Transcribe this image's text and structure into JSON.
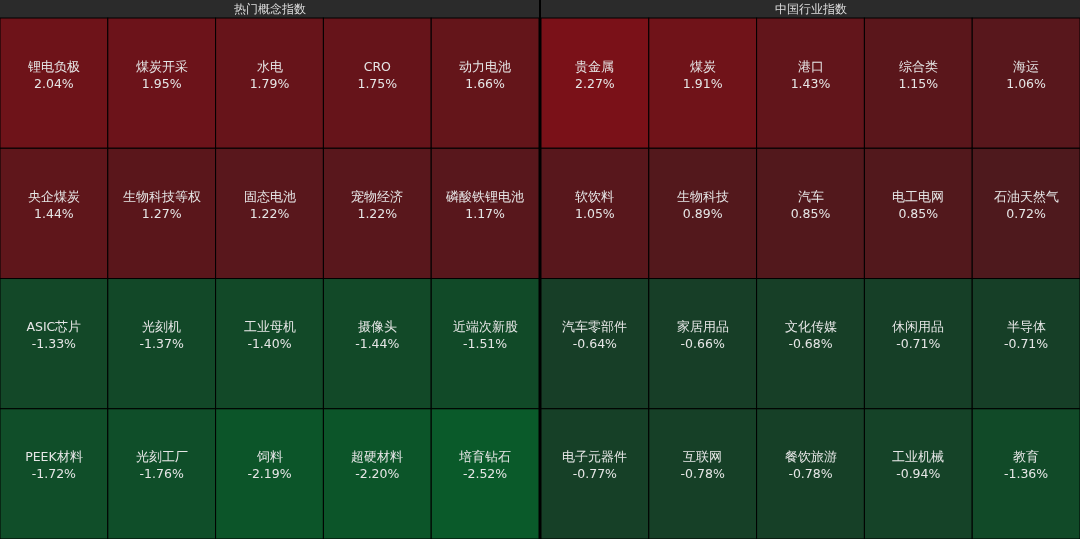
{
  "chart_data": [
    {
      "type": "other",
      "title": "热门概念指数",
      "categories": [
        "锂电负极",
        "煤炭开采",
        "水电",
        "CRO",
        "动力电池",
        "央企煤炭",
        "生物科技等权",
        "固态电池",
        "宠物经济",
        "磷酸铁锂电池",
        "ASIC芯片",
        "光刻机",
        "工业母机",
        "摄像头",
        "近端次新股",
        "PEEK材料",
        "光刻工厂",
        "饲料",
        "超硬材料",
        "培育钻石"
      ],
      "values": [
        2.04,
        1.95,
        1.79,
        1.75,
        1.66,
        1.44,
        1.27,
        1.22,
        1.22,
        1.17,
        -1.33,
        -1.37,
        -1.4,
        -1.44,
        -1.51,
        -1.72,
        -1.76,
        -2.19,
        -2.2,
        -2.52
      ],
      "value_labels": [
        "2.04%",
        "1.95%",
        "1.79%",
        "1.75%",
        "1.66%",
        "1.44%",
        "1.27%",
        "1.22%",
        "1.22%",
        "1.17%",
        "-1.33%",
        "-1.37%",
        "-1.40%",
        "-1.44%",
        "-1.51%",
        "-1.72%",
        "-1.76%",
        "-2.19%",
        "-2.20%",
        "-2.52%"
      ]
    },
    {
      "type": "other",
      "title": "中国行业指数",
      "categories": [
        "贵金属",
        "煤炭",
        "港口",
        "综合类",
        "海运",
        "软饮料",
        "生物科技",
        "汽车",
        "电工电网",
        "石油天然气",
        "汽车零部件",
        "家居用品",
        "文化传媒",
        "休闲用品",
        "半导体",
        "电子元器件",
        "互联网",
        "餐饮旅游",
        "工业机械",
        "教育"
      ],
      "values": [
        2.27,
        1.91,
        1.43,
        1.15,
        1.06,
        1.05,
        0.89,
        0.85,
        0.85,
        0.72,
        -0.64,
        -0.66,
        -0.68,
        -0.71,
        -0.71,
        -0.77,
        -0.78,
        -0.78,
        -0.94,
        -1.36
      ],
      "value_labels": [
        "2.27%",
        "1.91%",
        "1.43%",
        "1.15%",
        "1.06%",
        "1.05%",
        "0.89%",
        "0.85%",
        "0.85%",
        "0.72%",
        "-0.64%",
        "-0.66%",
        "-0.68%",
        "-0.71%",
        "-0.71%",
        "-0.77%",
        "-0.78%",
        "-0.78%",
        "-0.94%",
        "-1.36%"
      ]
    }
  ]
}
